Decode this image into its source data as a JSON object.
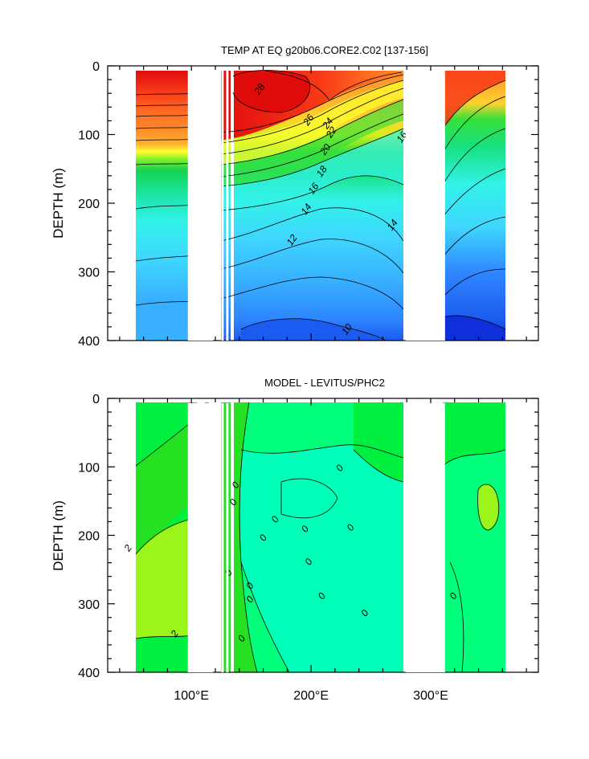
{
  "chart_data": [
    {
      "type": "heatmap",
      "title": "TEMP AT EQ g20b06.CORE2.C02 [137-156]",
      "xlabel": "",
      "ylabel": "DEPTH (m)",
      "xlim": [
        30,
        390
      ],
      "ylim": [
        400,
        0
      ],
      "yticks": [
        "0",
        "100",
        "200",
        "300",
        "400"
      ],
      "xticks": [],
      "contour_labels": [
        {
          "text": "28",
          "lon": 158,
          "depth": 35
        },
        {
          "text": "26",
          "lon": 199,
          "depth": 80
        },
        {
          "text": "24",
          "lon": 215,
          "depth": 85
        },
        {
          "text": "22",
          "lon": 218,
          "depth": 98
        },
        {
          "text": "20",
          "lon": 213,
          "depth": 123
        },
        {
          "text": "18",
          "lon": 210,
          "depth": 155
        },
        {
          "text": "16",
          "lon": 203,
          "depth": 180
        },
        {
          "text": "16",
          "lon": 277,
          "depth": 105
        },
        {
          "text": "14",
          "lon": 197,
          "depth": 210
        },
        {
          "text": "14",
          "lon": 269,
          "depth": 233
        },
        {
          "text": "12",
          "lon": 185,
          "depth": 255
        },
        {
          "text": "10",
          "lon": 231,
          "depth": 385
        }
      ],
      "land_gaps_lon": [
        [
          97,
          118
        ],
        [
          125,
          127
        ],
        [
          129,
          131
        ],
        [
          279,
          312
        ]
      ]
    },
    {
      "type": "heatmap",
      "title": "MODEL - LEVITUS/PHC2",
      "xlabel": "",
      "ylabel": "DEPTH (m)",
      "xlim": [
        30,
        390
      ],
      "ylim": [
        400,
        0
      ],
      "yticks": [
        "0",
        "100",
        "200",
        "300",
        "400"
      ],
      "xticks": [
        "100°E",
        "200°E",
        "300°E"
      ],
      "contour_labels": [
        {
          "text": "2",
          "lon": 48,
          "depth": 220
        },
        {
          "text": "2",
          "lon": 87,
          "depth": 345
        },
        {
          "text": "0",
          "lon": 138,
          "depth": 128
        },
        {
          "text": "0",
          "lon": 136,
          "depth": 153
        },
        {
          "text": "0",
          "lon": 161,
          "depth": 205
        },
        {
          "text": "0",
          "lon": 171,
          "depth": 178
        },
        {
          "text": "0",
          "lon": 196,
          "depth": 192
        },
        {
          "text": "0",
          "lon": 199,
          "depth": 240
        },
        {
          "text": "0",
          "lon": 210,
          "depth": 290
        },
        {
          "text": "0",
          "lon": 225,
          "depth": 103
        },
        {
          "text": "0",
          "lon": 234,
          "depth": 190
        },
        {
          "text": "0",
          "lon": 246,
          "depth": 315
        },
        {
          "text": "0",
          "lon": 320,
          "depth": 290
        },
        {
          "text": "0",
          "lon": 150,
          "depth": 275
        },
        {
          "text": "0",
          "lon": 150,
          "depth": 295
        },
        {
          "text": "0",
          "lon": 143,
          "depth": 352
        },
        {
          "text": "0",
          "lon": 132,
          "depth": 256
        }
      ],
      "land_gaps_lon": [
        [
          97,
          118
        ],
        [
          125,
          127
        ],
        [
          129,
          131
        ],
        [
          279,
          312
        ]
      ]
    }
  ],
  "colors": {
    "temp_scale": [
      "#0e2fd9",
      "#1c5bf0",
      "#2e86ff",
      "#38b0ff",
      "#3fd6ff",
      "#33f2e8",
      "#1fe6b8",
      "#17e07f",
      "#14d250",
      "#36e03a",
      "#7cf02a",
      "#d2f020",
      "#ffff2e",
      "#ffd22e",
      "#ffb02e",
      "#ff8e2a",
      "#ff6a22",
      "#f83a18",
      "#e00c0c"
    ],
    "diff_scale": [
      "#00ffb8",
      "#00ff7a",
      "#00f040",
      "#26e022",
      "#9cf51a"
    ]
  }
}
